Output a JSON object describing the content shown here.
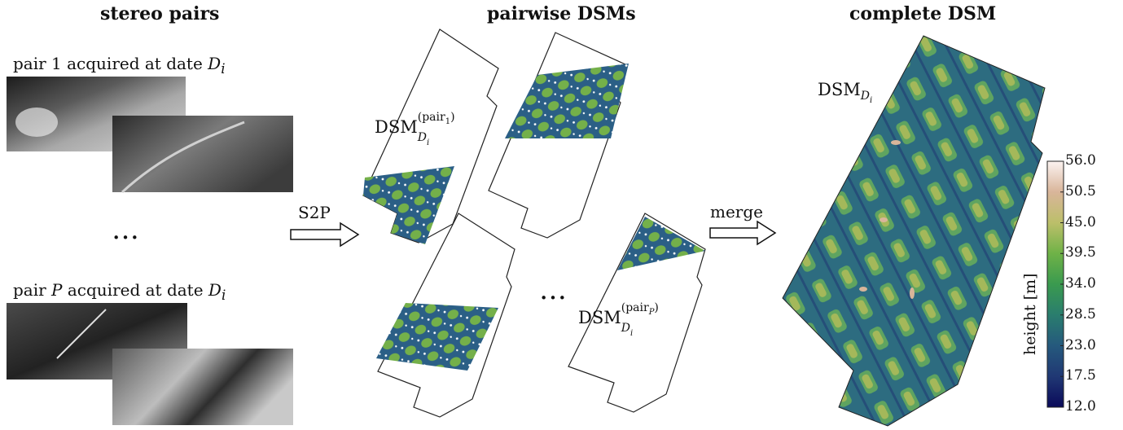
{
  "headings": {
    "stereo": "stereo pairs",
    "pairwise": "pairwise DSMs",
    "complete": "complete DSM"
  },
  "captions": {
    "pair1_prefix": "pair 1 acquired at date ",
    "pairP_prefix": "pair ",
    "pairP_var": "P",
    "pairP_suffix": " acquired at date ",
    "date_var": "D",
    "date_sub": "i"
  },
  "ellipsis": "…",
  "arrows": {
    "s2p": "S2P",
    "merge": "merge"
  },
  "dsm_labels": {
    "base": "DSM",
    "sub_var": "D",
    "sub_sub": "i",
    "pair1_sup": "(pair",
    "pair1_sup_sub": "1",
    "pairP_sup": "(pair",
    "pairP_sup_sub": "P",
    "close": ")"
  },
  "colorbar": {
    "label": "height  [m]",
    "ticks": [
      "56.0",
      "50.5",
      "45.0",
      "39.5",
      "34.0",
      "28.5",
      "23.0",
      "17.5",
      "12.0"
    ],
    "colors": [
      "#fbf3f1",
      "#d9b59a",
      "#bcbf6a",
      "#6fb247",
      "#3a9a4f",
      "#2a7d6e",
      "#25597d",
      "#203874",
      "#0a0a5a"
    ]
  }
}
